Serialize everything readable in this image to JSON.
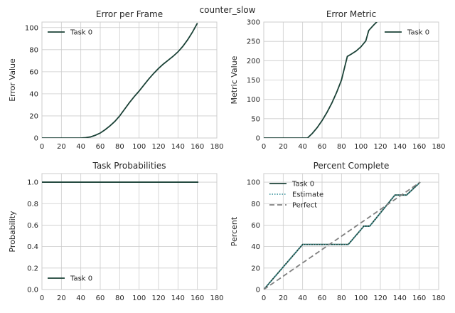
{
  "figure_title": "counter_slow",
  "chart_data": [
    {
      "type": "line",
      "title": "Error per Frame",
      "xlabel": "",
      "ylabel": "Error Value",
      "xlim": [
        0,
        180
      ],
      "ylim": [
        0,
        105
      ],
      "xticks": [
        0,
        20,
        40,
        60,
        80,
        100,
        120,
        140,
        160,
        180
      ],
      "yticks": [
        0,
        20,
        40,
        60,
        80,
        100
      ],
      "grid": true,
      "legend": "top-left",
      "series": [
        {
          "name": "Task 0",
          "color": "#1b4237",
          "dash": "",
          "x": [
            0,
            40,
            45,
            50,
            55,
            60,
            65,
            70,
            75,
            80,
            85,
            90,
            95,
            100,
            105,
            110,
            115,
            120,
            125,
            130,
            135,
            140,
            145,
            150,
            155,
            160
          ],
          "y": [
            0,
            0,
            0.3,
            1,
            2.5,
            4.5,
            7.5,
            11,
            15,
            20,
            26,
            32,
            37.5,
            42.5,
            48,
            53.5,
            58.5,
            63,
            67,
            70.5,
            74,
            78,
            83,
            89,
            96,
            104
          ]
        }
      ]
    },
    {
      "type": "line",
      "title": "Error Metric",
      "xlabel": "",
      "ylabel": "Metric Value",
      "xlim": [
        0,
        180
      ],
      "ylim": [
        0,
        300
      ],
      "xticks": [
        0,
        20,
        40,
        60,
        80,
        100,
        120,
        140,
        160,
        180
      ],
      "yticks": [
        0,
        50,
        100,
        150,
        200,
        250,
        300
      ],
      "grid": true,
      "legend": "top-right",
      "series": [
        {
          "name": "Task 0",
          "color": "#1b4237",
          "dash": "",
          "x": [
            0,
            45,
            50,
            55,
            60,
            65,
            70,
            75,
            80,
            86,
            90,
            95,
            100,
            105,
            108,
            113,
            117
          ],
          "y": [
            0,
            0,
            12,
            27,
            45,
            66,
            90,
            118,
            150,
            211,
            217,
            225,
            236,
            251,
            278,
            292,
            302
          ]
        }
      ]
    },
    {
      "type": "line",
      "title": "Task Probabilities",
      "xlabel": "",
      "ylabel": "Probability",
      "xlim": [
        0,
        180
      ],
      "ylim": [
        0,
        1.08
      ],
      "xticks": [
        0,
        20,
        40,
        60,
        80,
        100,
        120,
        140,
        160,
        180
      ],
      "yticks": [
        0.0,
        0.2,
        0.4,
        0.6,
        0.8,
        1.0
      ],
      "ytick_labels": [
        "0.0",
        "0.2",
        "0.4",
        "0.6",
        "0.8",
        "1.0"
      ],
      "grid": true,
      "legend": "bottom-left",
      "series": [
        {
          "name": "Task 0",
          "color": "#1b4237",
          "dash": "",
          "x": [
            0,
            161
          ],
          "y": [
            1.0,
            1.0
          ]
        }
      ]
    },
    {
      "type": "line",
      "title": "Percent Complete",
      "xlabel": "",
      "ylabel": "Percent",
      "xlim": [
        0,
        180
      ],
      "ylim": [
        0,
        108
      ],
      "xticks": [
        0,
        20,
        40,
        60,
        80,
        100,
        120,
        140,
        160,
        180
      ],
      "yticks": [
        0,
        20,
        40,
        60,
        80,
        100
      ],
      "grid": true,
      "legend": "top-left",
      "series": [
        {
          "name": "Task 0",
          "color": "#1b4237",
          "dash": "",
          "x": [
            0,
            40,
            87,
            103,
            109,
            135,
            147,
            161
          ],
          "y": [
            0,
            42,
            42,
            59,
            59,
            88,
            88,
            100
          ]
        },
        {
          "name": "Estimate",
          "color": "#4c9ca5",
          "dash": "1.5,2",
          "x": [
            0,
            40,
            87,
            103,
            109,
            135,
            147,
            161
          ],
          "y": [
            0,
            42,
            42,
            59,
            59,
            88,
            88,
            100
          ]
        },
        {
          "name": "Perfect",
          "color": "#808080",
          "dash": "7,4",
          "x": [
            0,
            161
          ],
          "y": [
            0,
            100
          ]
        }
      ]
    }
  ]
}
